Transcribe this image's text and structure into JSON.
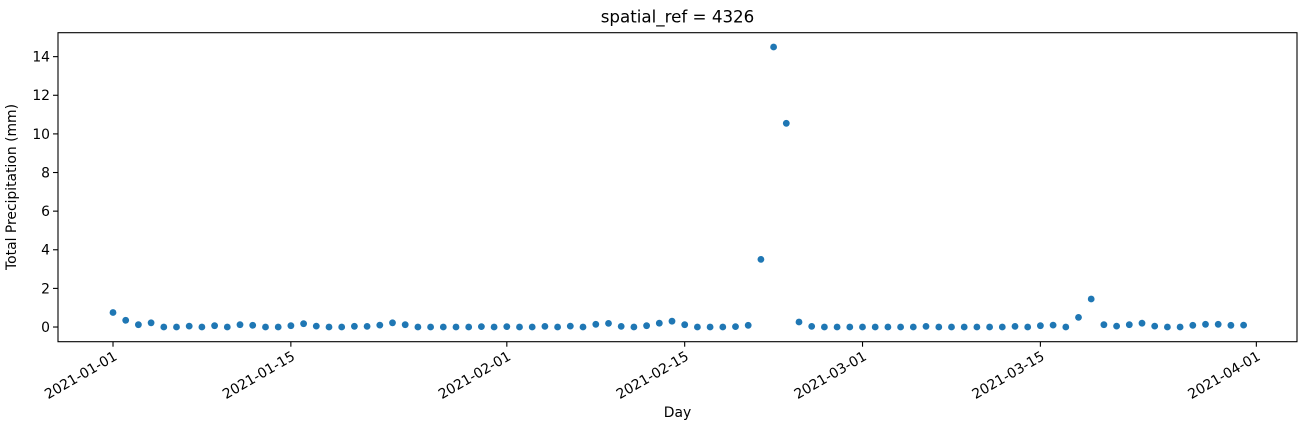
{
  "chart_data": {
    "type": "scatter",
    "title": "spatial_ref = 4326",
    "xlabel": "Day",
    "ylabel": "Total Precipitation (mm)",
    "marker_color": "#1f77b4",
    "axis_color": "#000000",
    "grid": false,
    "legend": false,
    "x_tick_labels": [
      "2021-01-01",
      "2021-01-15",
      "2021-02-01",
      "2021-02-15",
      "2021-03-01",
      "2021-03-15",
      "2021-04-01"
    ],
    "y_ticks": [
      0,
      2,
      4,
      6,
      8,
      10,
      12,
      14
    ],
    "xlim_days": [
      -4.33,
      93.2
    ],
    "ylim": [
      -0.76,
      15.24
    ],
    "points": [
      [
        "2021-01-01",
        0.75
      ],
      [
        "2021-01-02",
        0.35
      ],
      [
        "2021-01-03",
        0.12
      ],
      [
        "2021-01-04",
        0.22
      ],
      [
        "2021-01-05",
        0.0
      ],
      [
        "2021-01-06",
        0.0
      ],
      [
        "2021-01-07",
        0.05
      ],
      [
        "2021-01-08",
        0.0
      ],
      [
        "2021-01-09",
        0.07
      ],
      [
        "2021-01-10",
        0.0
      ],
      [
        "2021-01-11",
        0.12
      ],
      [
        "2021-01-12",
        0.09
      ],
      [
        "2021-01-13",
        0.0
      ],
      [
        "2021-01-14",
        0.0
      ],
      [
        "2021-01-15",
        0.07
      ],
      [
        "2021-01-16",
        0.17
      ],
      [
        "2021-01-17",
        0.05
      ],
      [
        "2021-01-18",
        0.0
      ],
      [
        "2021-01-19",
        0.0
      ],
      [
        "2021-01-20",
        0.04
      ],
      [
        "2021-01-21",
        0.03
      ],
      [
        "2021-01-22",
        0.1
      ],
      [
        "2021-01-23",
        0.22
      ],
      [
        "2021-01-24",
        0.12
      ],
      [
        "2021-01-25",
        0.0
      ],
      [
        "2021-01-26",
        0.0
      ],
      [
        "2021-01-27",
        0.0
      ],
      [
        "2021-01-28",
        0.0
      ],
      [
        "2021-01-29",
        0.0
      ],
      [
        "2021-01-30",
        0.02
      ],
      [
        "2021-01-31",
        0.0
      ],
      [
        "2021-02-01",
        0.02
      ],
      [
        "2021-02-02",
        0.0
      ],
      [
        "2021-02-03",
        0.0
      ],
      [
        "2021-02-04",
        0.03
      ],
      [
        "2021-02-05",
        0.0
      ],
      [
        "2021-02-06",
        0.05
      ],
      [
        "2021-02-07",
        0.0
      ],
      [
        "2021-02-08",
        0.14
      ],
      [
        "2021-02-09",
        0.19
      ],
      [
        "2021-02-10",
        0.03
      ],
      [
        "2021-02-11",
        0.0
      ],
      [
        "2021-02-12",
        0.07
      ],
      [
        "2021-02-13",
        0.2
      ],
      [
        "2021-02-14",
        0.3
      ],
      [
        "2021-02-15",
        0.12
      ],
      [
        "2021-02-16",
        0.0
      ],
      [
        "2021-02-17",
        0.0
      ],
      [
        "2021-02-18",
        0.0
      ],
      [
        "2021-02-19",
        0.02
      ],
      [
        "2021-02-20",
        0.09
      ],
      [
        "2021-02-21",
        3.5
      ],
      [
        "2021-02-22",
        14.5
      ],
      [
        "2021-02-23",
        10.55
      ],
      [
        "2021-02-24",
        0.26
      ],
      [
        "2021-02-25",
        0.03
      ],
      [
        "2021-02-26",
        0.0
      ],
      [
        "2021-02-27",
        0.0
      ],
      [
        "2021-02-28",
        0.0
      ],
      [
        "2021-03-01",
        0.0
      ],
      [
        "2021-03-02",
        0.0
      ],
      [
        "2021-03-03",
        0.0
      ],
      [
        "2021-03-04",
        0.0
      ],
      [
        "2021-03-05",
        0.0
      ],
      [
        "2021-03-06",
        0.03
      ],
      [
        "2021-03-07",
        0.0
      ],
      [
        "2021-03-08",
        0.0
      ],
      [
        "2021-03-09",
        0.0
      ],
      [
        "2021-03-10",
        0.0
      ],
      [
        "2021-03-11",
        0.0
      ],
      [
        "2021-03-12",
        0.0
      ],
      [
        "2021-03-13",
        0.03
      ],
      [
        "2021-03-14",
        0.0
      ],
      [
        "2021-03-15",
        0.07
      ],
      [
        "2021-03-16",
        0.1
      ],
      [
        "2021-03-17",
        0.0
      ],
      [
        "2021-03-18",
        0.5
      ],
      [
        "2021-03-19",
        1.45
      ],
      [
        "2021-03-20",
        0.12
      ],
      [
        "2021-03-21",
        0.05
      ],
      [
        "2021-03-22",
        0.12
      ],
      [
        "2021-03-23",
        0.2
      ],
      [
        "2021-03-24",
        0.05
      ],
      [
        "2021-03-25",
        0.0
      ],
      [
        "2021-03-26",
        0.0
      ],
      [
        "2021-03-27",
        0.09
      ],
      [
        "2021-03-28",
        0.14
      ],
      [
        "2021-03-29",
        0.14
      ],
      [
        "2021-03-30",
        0.09
      ],
      [
        "2021-03-31",
        0.1
      ]
    ]
  }
}
